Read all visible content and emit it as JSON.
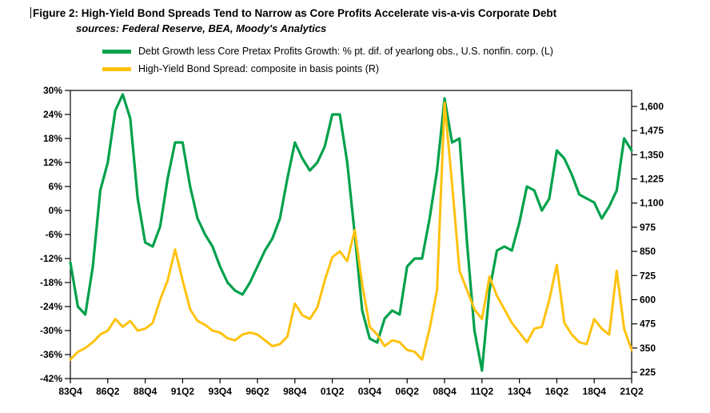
{
  "figure": {
    "title": "Figure 2: High-Yield Bond Spreads Tend to Narrow as Core Profits Accelerate vis-a-vis Corporate Debt",
    "subtitle": "sources: Federal Reserve, BEA, Moody's Analytics"
  },
  "legend": [
    {
      "label": "Debt Growth less Core Pretax Profits Growth: % pt. dif. of yearlong obs., U.S. nonfin. corp. (L)",
      "color": "#00A14B"
    },
    {
      "label": "High-Yield Bond Spread: composite in basis points (R)",
      "color": "#FFC20E"
    }
  ],
  "chart_data": {
    "type": "line",
    "title": "Figure 2: High-Yield Bond Spreads Tend to Narrow as Core Profits Accelerate vis-a-vis Corporate Debt",
    "subtitle": "sources: Federal Reserve, BEA, Moody's Analytics",
    "grid": false,
    "legend_position": "top-left",
    "x_tick_labels": [
      "83Q4",
      "86Q2",
      "88Q4",
      "91Q2",
      "93Q4",
      "96Q2",
      "98Q4",
      "01Q2",
      "03Q4",
      "06Q2",
      "08Q4",
      "11Q2",
      "13Q4",
      "16Q2",
      "18Q4",
      "21Q2"
    ],
    "left_axis": {
      "title": "Debt Growth less Core Pretax Profits Growth (% pt. dif.)",
      "min": -42,
      "max": 30,
      "unit": "%",
      "ticks": [
        "30%",
        "24%",
        "18%",
        "12%",
        "6%",
        "0%",
        "-6%",
        "-12%",
        "-18%",
        "-24%",
        "-30%",
        "-36%",
        "-42%"
      ]
    },
    "right_axis": {
      "title": "High-Yield Bond Spread (basis points)",
      "min": 225,
      "max": 1600,
      "unit": "bp",
      "ticks": [
        "1,600",
        "1,475",
        "1,350",
        "1,225",
        "1,100",
        "975",
        "850",
        "725",
        "600",
        "475",
        "350",
        "225"
      ]
    },
    "x": [
      "83Q4",
      "84Q2",
      "84Q4",
      "85Q2",
      "85Q4",
      "86Q2",
      "86Q4",
      "87Q2",
      "87Q4",
      "88Q2",
      "88Q4",
      "89Q2",
      "89Q4",
      "90Q2",
      "90Q4",
      "91Q2",
      "91Q4",
      "92Q2",
      "92Q4",
      "93Q2",
      "93Q4",
      "94Q2",
      "94Q4",
      "95Q2",
      "95Q4",
      "96Q2",
      "96Q4",
      "97Q2",
      "97Q4",
      "98Q2",
      "98Q4",
      "99Q2",
      "99Q4",
      "00Q2",
      "00Q4",
      "01Q2",
      "01Q4",
      "02Q2",
      "02Q4",
      "03Q2",
      "03Q4",
      "04Q2",
      "04Q4",
      "05Q2",
      "05Q4",
      "06Q2",
      "06Q4",
      "07Q2",
      "07Q4",
      "08Q2",
      "08Q4",
      "09Q2",
      "09Q4",
      "10Q2",
      "10Q4",
      "11Q2",
      "11Q4",
      "12Q2",
      "12Q4",
      "13Q2",
      "13Q4",
      "14Q2",
      "14Q4",
      "15Q2",
      "15Q4",
      "16Q2",
      "16Q4",
      "17Q2",
      "17Q4",
      "18Q2",
      "18Q4",
      "19Q2",
      "19Q4",
      "20Q2",
      "20Q4",
      "21Q2"
    ],
    "series": [
      {
        "name": "Debt Growth less Core Pretax Profits Growth: % pt. dif. of yearlong obs., U.S. nonfin. corp. (L)",
        "axis": "left",
        "color": "#00A14B",
        "values": [
          -13,
          -24,
          -26,
          -14,
          5,
          12,
          25,
          29,
          23,
          3,
          -8,
          -9,
          -4,
          8,
          17,
          17,
          6,
          -2,
          -6,
          -9,
          -14,
          -18,
          -20,
          -21,
          -18,
          -14,
          -10,
          -7,
          -2,
          8,
          17,
          13,
          10,
          12,
          16,
          24,
          24,
          12,
          -6,
          -25,
          -32,
          -33,
          -27,
          -25,
          -26,
          -14,
          -12,
          -12,
          -2,
          10,
          28,
          17,
          18,
          -8,
          -30,
          -40,
          -20,
          -10,
          -9,
          -10,
          -3,
          6,
          5,
          0,
          3,
          15,
          13,
          9,
          4,
          3,
          2,
          -2,
          1,
          5,
          18,
          15
        ]
      },
      {
        "name": "High-Yield Bond Spread: composite in basis points (R)",
        "axis": "right",
        "color": "#FFC20E",
        "values": [
          290,
          330,
          350,
          380,
          420,
          440,
          500,
          460,
          490,
          440,
          450,
          480,
          600,
          700,
          860,
          700,
          550,
          490,
          470,
          440,
          430,
          400,
          390,
          420,
          430,
          420,
          390,
          360,
          370,
          410,
          580,
          520,
          500,
          560,
          700,
          820,
          850,
          800,
          960,
          680,
          460,
          420,
          360,
          390,
          380,
          340,
          330,
          290,
          450,
          650,
          1620,
          1200,
          750,
          650,
          550,
          500,
          720,
          620,
          550,
          480,
          430,
          380,
          450,
          460,
          600,
          780,
          480,
          420,
          380,
          370,
          500,
          450,
          420,
          750,
          450,
          340
        ]
      }
    ]
  }
}
